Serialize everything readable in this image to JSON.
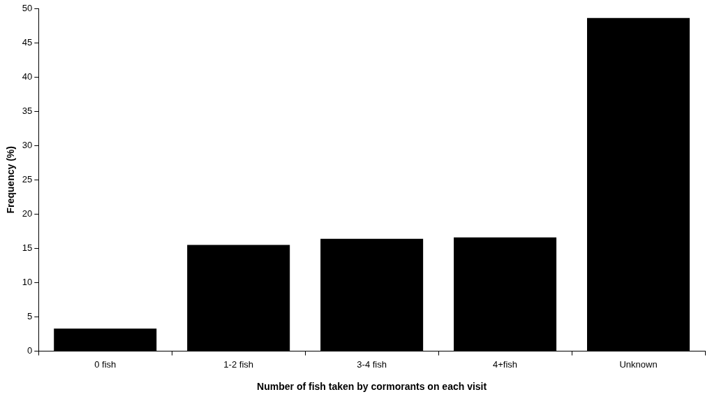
{
  "chart_data": {
    "type": "bar",
    "xlabel": "Number of fish taken by cormorants on each visit",
    "ylabel": "Frequency (%)",
    "categories": [
      "0 fish",
      "1-2 fish",
      "3-4 fish",
      "4+fish",
      "Unknown"
    ],
    "values": [
      3.3,
      15.5,
      16.4,
      16.6,
      48.6
    ],
    "color": "#000000",
    "ylim": [
      0,
      50
    ],
    "yticks": [
      0,
      5,
      10,
      15,
      20,
      25,
      30,
      35,
      40,
      45,
      50
    ],
    "grid": false,
    "legend": false
  }
}
